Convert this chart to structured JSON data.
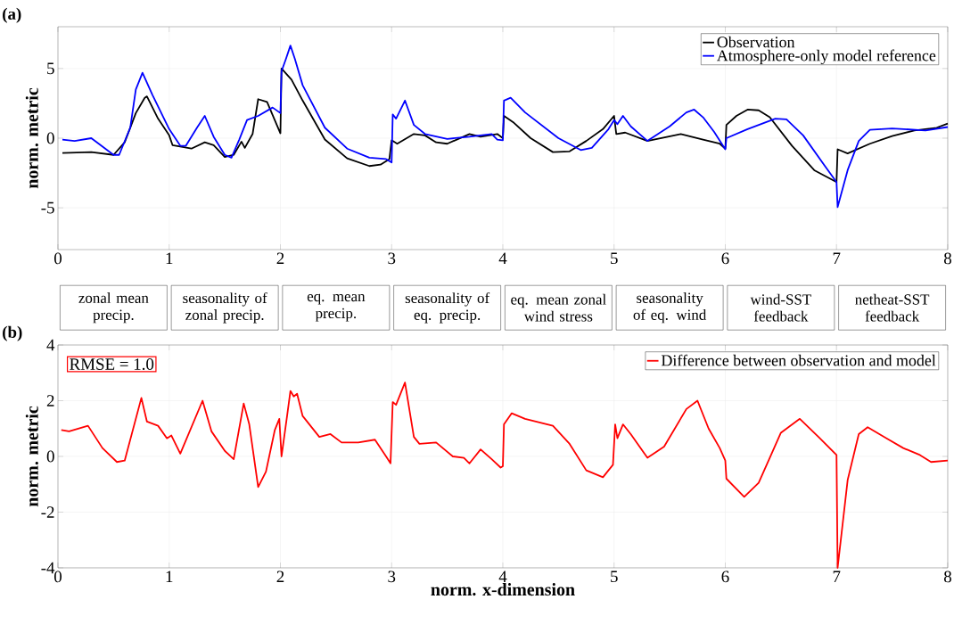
{
  "chart_data": [
    {
      "type": "line",
      "title": "(a)",
      "ylabel": "norm. metric",
      "xlim": [
        0,
        8
      ],
      "ylim": [
        -8,
        8
      ],
      "xticks": [
        0,
        1,
        2,
        3,
        4,
        5,
        6,
        7,
        8
      ],
      "yticks": [
        -5,
        0,
        5
      ],
      "grid": true,
      "legend": "top right",
      "annotations": [
        "zonal mean precip.",
        "seasonality of zonal precip.",
        "eq. mean precip.",
        "seasonality of eq. precip.",
        "eq. mean zonal wind stress",
        "seasonality of eq. wind",
        "wind-SST feedback",
        "netheat-SST feedback"
      ],
      "series": [
        {
          "name": "Observation",
          "color": "#000000",
          "x": [
            0.04,
            0.3,
            0.5,
            0.6,
            0.7,
            0.78,
            0.8,
            0.9,
            1.0,
            1.03,
            1.2,
            1.32,
            1.4,
            1.5,
            1.58,
            1.65,
            1.68,
            1.75,
            1.8,
            1.88,
            2.0,
            2.01,
            2.1,
            2.2,
            2.4,
            2.6,
            2.8,
            2.9,
            2.98,
            3.0,
            3.05,
            3.2,
            3.3,
            3.4,
            3.5,
            3.7,
            3.8,
            3.95,
            4.0,
            4.01,
            4.1,
            4.25,
            4.45,
            4.6,
            4.75,
            4.9,
            5.0,
            5.02,
            5.1,
            5.3,
            5.6,
            5.8,
            5.95,
            6.0,
            6.01,
            6.1,
            6.2,
            6.3,
            6.4,
            6.6,
            6.8,
            7.0,
            7.01,
            7.1,
            7.3,
            7.5,
            7.7,
            7.9,
            8.0
          ],
          "values": [
            -1.07,
            -1.0,
            -1.2,
            -0.3,
            1.8,
            2.9,
            3.0,
            1.4,
            0.2,
            -0.5,
            -0.75,
            -0.3,
            -0.5,
            -1.35,
            -1.2,
            -0.25,
            -0.7,
            0.3,
            2.8,
            2.6,
            0.35,
            5.0,
            4.2,
            2.7,
            -0.1,
            -1.45,
            -2.0,
            -1.9,
            -1.5,
            -0.15,
            -0.4,
            0.3,
            0.2,
            -0.3,
            -0.4,
            0.3,
            0.1,
            0.3,
            0.0,
            1.6,
            1.1,
            0.0,
            -1.0,
            -0.95,
            -0.2,
            0.65,
            1.6,
            0.3,
            0.4,
            -0.2,
            0.3,
            -0.1,
            -0.4,
            -0.75,
            0.95,
            1.6,
            2.05,
            2.0,
            1.5,
            -0.55,
            -2.3,
            -3.15,
            -0.8,
            -1.1,
            -0.4,
            0.15,
            0.55,
            0.75,
            1.05
          ]
        },
        {
          "name": "Atmosphere-only model reference",
          "color": "#0000ff",
          "x": [
            0.04,
            0.15,
            0.3,
            0.5,
            0.55,
            0.65,
            0.7,
            0.76,
            0.85,
            1.0,
            1.1,
            1.15,
            1.25,
            1.32,
            1.4,
            1.5,
            1.56,
            1.63,
            1.7,
            1.8,
            1.93,
            2.0,
            2.01,
            2.05,
            2.09,
            2.13,
            2.2,
            2.4,
            2.6,
            2.8,
            2.95,
            3.0,
            3.01,
            3.04,
            3.12,
            3.2,
            3.3,
            3.5,
            3.7,
            3.9,
            3.95,
            4.0,
            4.01,
            4.07,
            4.2,
            4.5,
            4.7,
            4.8,
            4.95,
            5.0,
            5.03,
            5.08,
            5.15,
            5.3,
            5.5,
            5.65,
            5.72,
            5.8,
            5.9,
            6.0,
            6.01,
            6.2,
            6.45,
            6.55,
            6.7,
            6.9,
            7.0,
            7.01,
            7.1,
            7.2,
            7.3,
            7.5,
            7.8,
            8.0
          ],
          "values": [
            -0.1,
            -0.2,
            0.0,
            -1.2,
            -1.2,
            0.75,
            3.5,
            4.7,
            3.1,
            0.65,
            -0.55,
            -0.55,
            0.75,
            1.6,
            0.1,
            -1.2,
            -1.4,
            -0.1,
            1.3,
            1.6,
            2.2,
            1.8,
            4.8,
            5.7,
            6.65,
            5.7,
            3.8,
            0.75,
            -0.75,
            -1.4,
            -1.5,
            -1.75,
            1.7,
            1.4,
            2.7,
            0.95,
            0.3,
            -0.05,
            0.1,
            0.3,
            -0.1,
            -0.15,
            2.7,
            2.9,
            1.85,
            0.0,
            -0.85,
            -0.7,
            0.65,
            1.3,
            1.0,
            1.6,
            0.85,
            -0.2,
            0.85,
            1.85,
            2.05,
            1.5,
            0.45,
            -0.8,
            0.0,
            0.65,
            1.4,
            1.35,
            0.2,
            -2.05,
            -3.15,
            -4.95,
            -2.3,
            -0.2,
            0.6,
            0.7,
            0.55,
            0.8
          ]
        }
      ]
    },
    {
      "type": "line",
      "title": "(b)",
      "xlabel": "norm. x-dimension",
      "ylabel": "norm. metric",
      "xlim": [
        0,
        8
      ],
      "ylim": [
        -4,
        4
      ],
      "xticks": [
        0,
        1,
        2,
        3,
        4,
        5,
        6,
        7,
        8
      ],
      "yticks": [
        -4,
        -2,
        0,
        2,
        4
      ],
      "grid": true,
      "legend": "top right",
      "annotations": [
        "RMSE = 1.0"
      ],
      "series": [
        {
          "name": "Difference between observation and model",
          "color": "#ff0000",
          "x": [
            0.03,
            0.1,
            0.27,
            0.4,
            0.53,
            0.6,
            0.75,
            0.8,
            0.9,
            0.98,
            1.02,
            1.1,
            1.3,
            1.38,
            1.5,
            1.58,
            1.67,
            1.72,
            1.8,
            1.87,
            1.95,
            1.99,
            2.01,
            2.06,
            2.09,
            2.12,
            2.15,
            2.2,
            2.35,
            2.45,
            2.55,
            2.7,
            2.85,
            2.95,
            2.99,
            3.01,
            3.04,
            3.12,
            3.2,
            3.25,
            3.4,
            3.55,
            3.65,
            3.7,
            3.8,
            3.9,
            3.98,
            4.0,
            4.01,
            4.08,
            4.2,
            4.45,
            4.6,
            4.75,
            4.9,
            4.99,
            5.01,
            5.03,
            5.08,
            5.15,
            5.3,
            5.45,
            5.65,
            5.75,
            5.85,
            5.95,
            6.0,
            6.01,
            6.17,
            6.3,
            6.5,
            6.67,
            6.85,
            7.0,
            7.01,
            7.1,
            7.2,
            7.28,
            7.45,
            7.6,
            7.75,
            7.85,
            8.0
          ],
          "values": [
            0.95,
            0.9,
            1.1,
            0.3,
            -0.2,
            -0.15,
            2.1,
            1.25,
            1.1,
            0.65,
            0.75,
            0.1,
            2.0,
            0.9,
            0.2,
            -0.1,
            1.9,
            1.15,
            -1.1,
            -0.55,
            0.95,
            1.35,
            0.0,
            1.45,
            2.35,
            2.15,
            2.25,
            1.45,
            0.7,
            0.8,
            0.5,
            0.5,
            0.6,
            0.0,
            -0.25,
            1.95,
            1.85,
            2.65,
            0.7,
            0.45,
            0.5,
            0.0,
            -0.05,
            -0.25,
            0.25,
            -0.1,
            -0.4,
            -0.35,
            1.15,
            1.55,
            1.35,
            1.1,
            0.45,
            -0.5,
            -0.75,
            -0.3,
            1.15,
            0.65,
            1.15,
            0.8,
            -0.05,
            0.35,
            1.7,
            2.0,
            1.0,
            0.3,
            -0.15,
            -0.8,
            -1.45,
            -0.95,
            0.85,
            1.35,
            0.65,
            0.05,
            -4.0,
            -0.85,
            0.8,
            1.05,
            0.65,
            0.3,
            0.05,
            -0.2,
            -0.15
          ]
        }
      ]
    }
  ]
}
